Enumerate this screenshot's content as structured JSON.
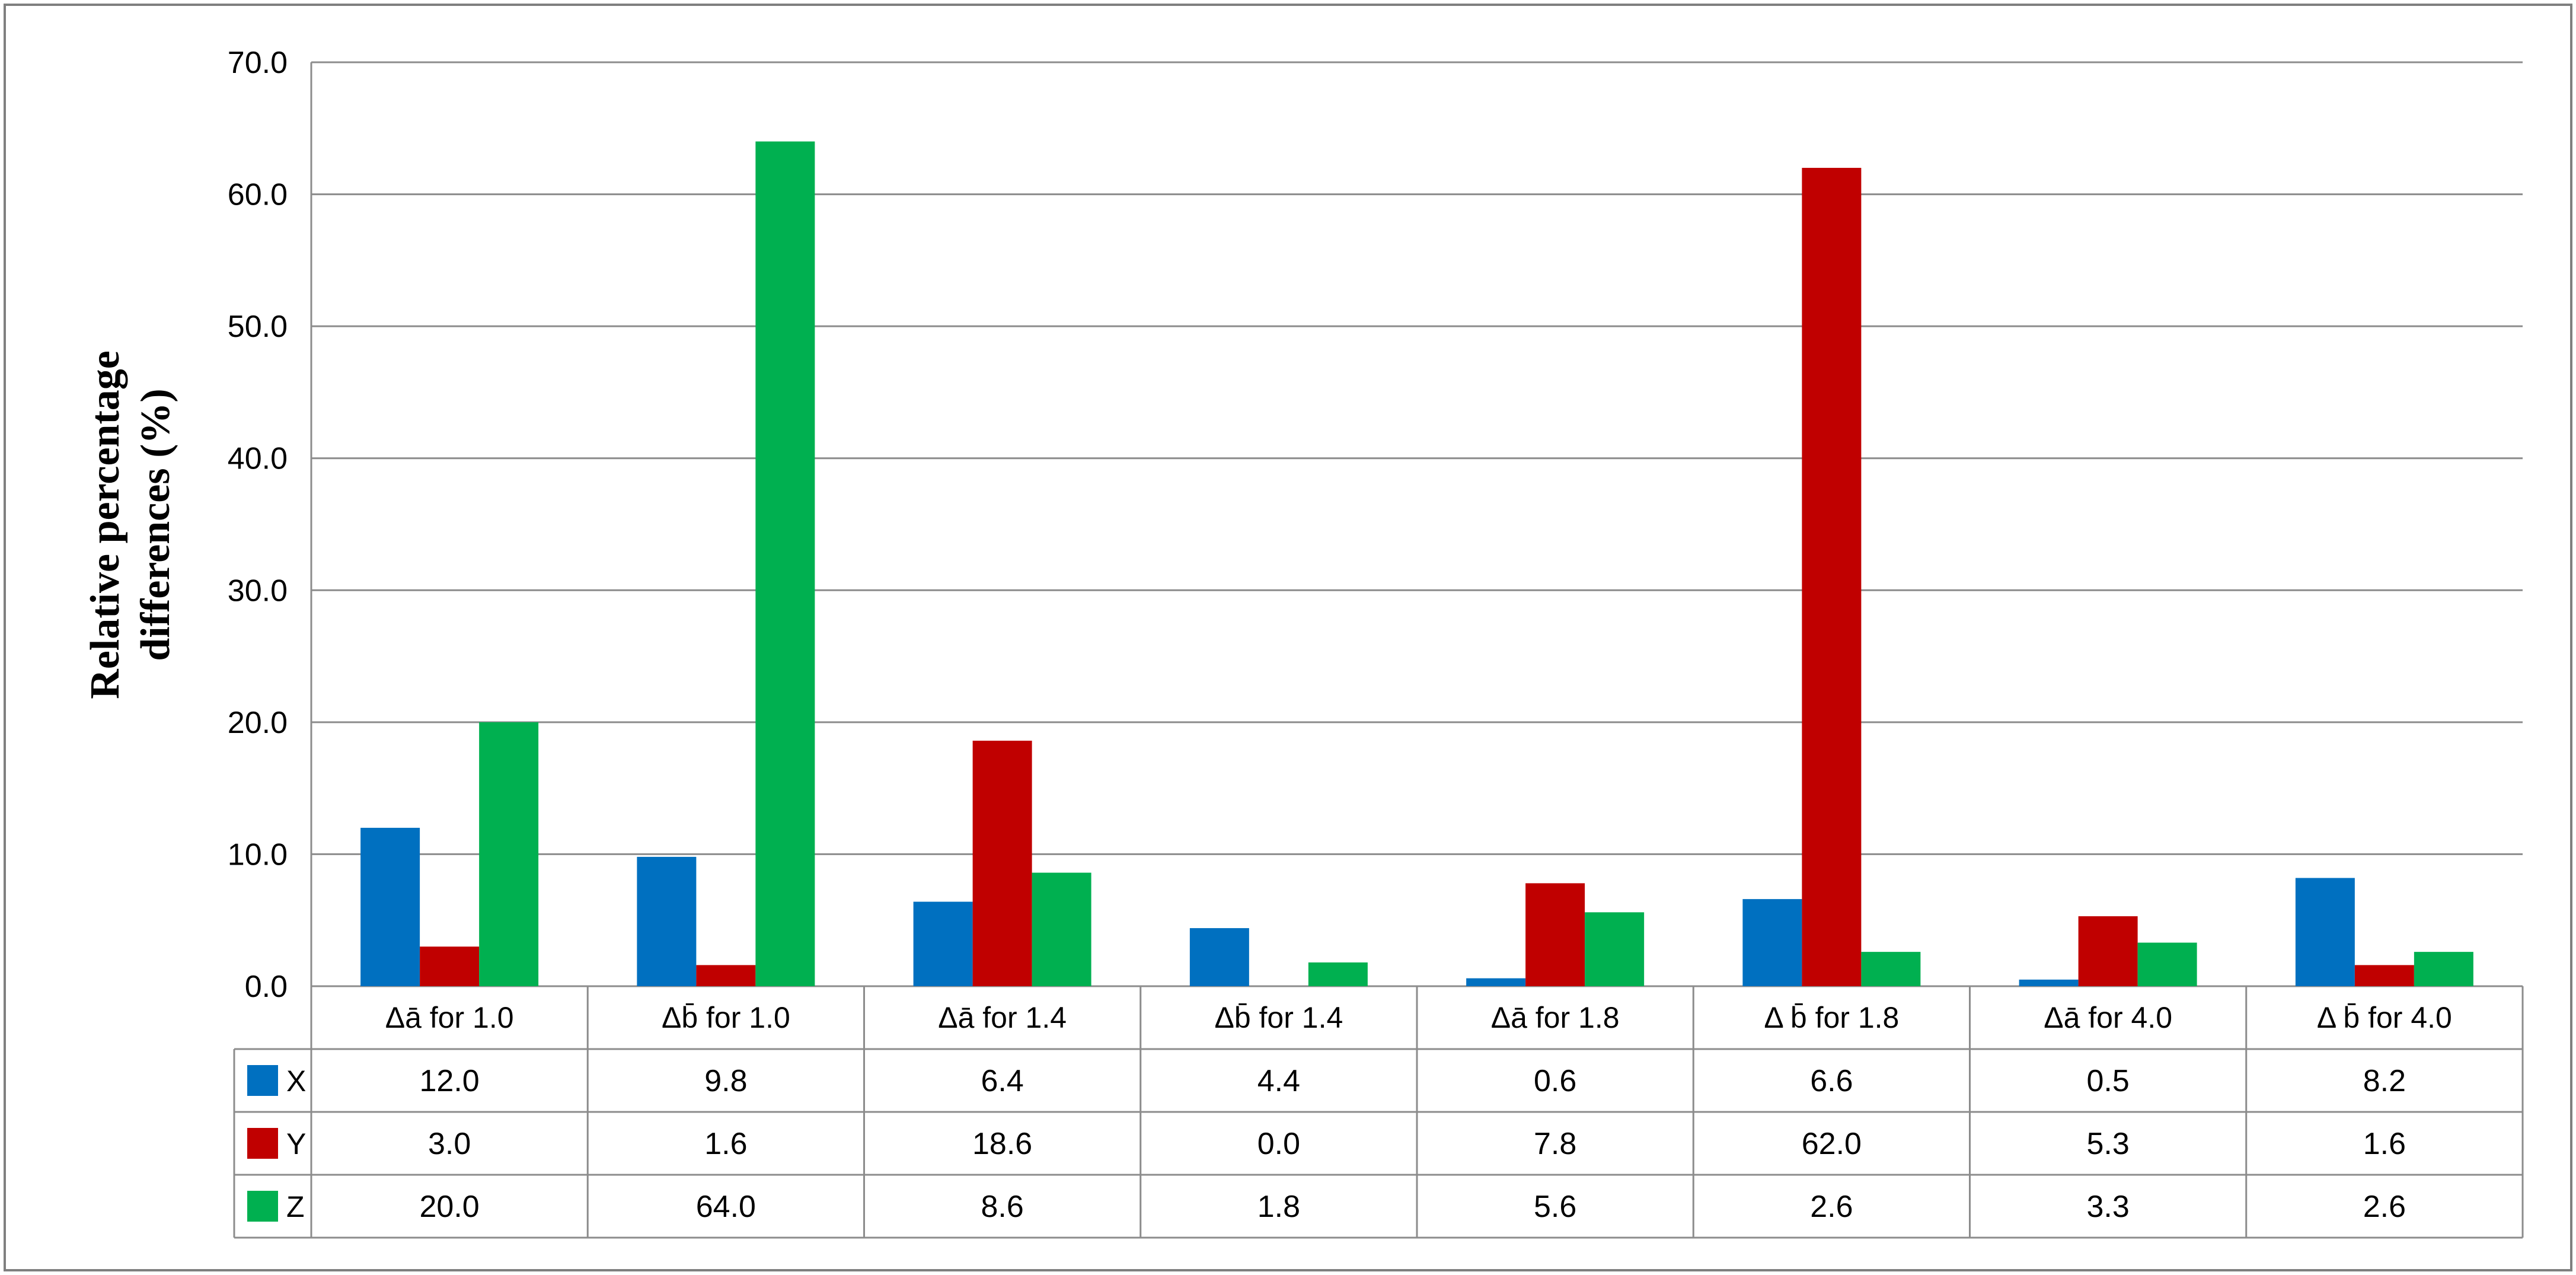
{
  "chart_data": {
    "type": "bar",
    "title": "",
    "xlabel": "",
    "ylabel": "Relative percentage differences (%)",
    "ylabel_lines": [
      "Relative percentage",
      "differences (%)"
    ],
    "ylim": [
      0,
      70
    ],
    "yticks": [
      "0.0",
      "10.0",
      "20.0",
      "30.0",
      "40.0",
      "50.0",
      "60.0",
      "70.0"
    ],
    "grid": true,
    "legend": "data-table",
    "categories": [
      "Δā  for  1.0",
      "Δb̄  for  1.0",
      "Δā  for  1.4",
      "Δb̄  for 1.4",
      "Δā  for  1.8",
      "Δ b̄  for 1.8",
      "Δā  for  4.0",
      "Δ b̄  for  4.0"
    ],
    "series": [
      {
        "name": "X",
        "color": "#0070c0",
        "values": [
          12.0,
          9.8,
          6.4,
          4.4,
          0.6,
          6.6,
          0.5,
          8.2
        ],
        "labels": [
          "12.0",
          "9.8",
          "6.4",
          "4.4",
          "0.6",
          "6.6",
          "0.5",
          "8.2"
        ]
      },
      {
        "name": "Y",
        "color": "#c00000",
        "values": [
          3.0,
          1.6,
          18.6,
          0.0,
          7.8,
          62.0,
          5.3,
          1.6
        ],
        "labels": [
          "3.0",
          "1.6",
          "18.6",
          "0.0",
          "7.8",
          "62.0",
          "5.3",
          "1.6"
        ]
      },
      {
        "name": "Z",
        "color": "#00b050",
        "values": [
          20.0,
          64.0,
          8.6,
          1.8,
          5.6,
          2.6,
          3.3,
          2.6
        ],
        "labels": [
          "20.0",
          "64.0",
          "8.6",
          "1.8",
          "5.6",
          "2.6",
          "3.3",
          "2.6"
        ]
      }
    ]
  }
}
